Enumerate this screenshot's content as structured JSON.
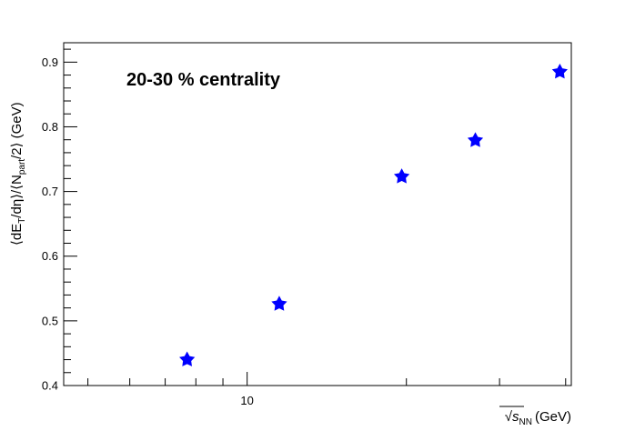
{
  "chart_data": {
    "type": "scatter",
    "annotation": "20-30 % centrality",
    "xlabel": {
      "sqrt_symbol": "√",
      "var": "s",
      "sub": "NN",
      "unit": "(GeV)"
    },
    "ylabel": {
      "part1": "⟨dE",
      "sub1": "T",
      "part2": "/dη⟩/⟨N",
      "sub2": "part",
      "part3": "/2⟩ (GeV)"
    },
    "x_scale": "log",
    "xlim": [
      4.5,
      41
    ],
    "ylim": [
      0.4,
      0.93
    ],
    "x_tick_labels": [
      "10"
    ],
    "y_tick_labels": [
      "0.4",
      "0.5",
      "0.6",
      "0.7",
      "0.8",
      "0.9"
    ],
    "grid": false,
    "marker": "star",
    "marker_color": "#0000ff",
    "points": [
      {
        "x": 7.7,
        "y": 0.44
      },
      {
        "x": 11.5,
        "y": 0.526
      },
      {
        "x": 19.6,
        "y": 0.723
      },
      {
        "x": 27,
        "y": 0.779
      },
      {
        "x": 39,
        "y": 0.885
      }
    ]
  }
}
